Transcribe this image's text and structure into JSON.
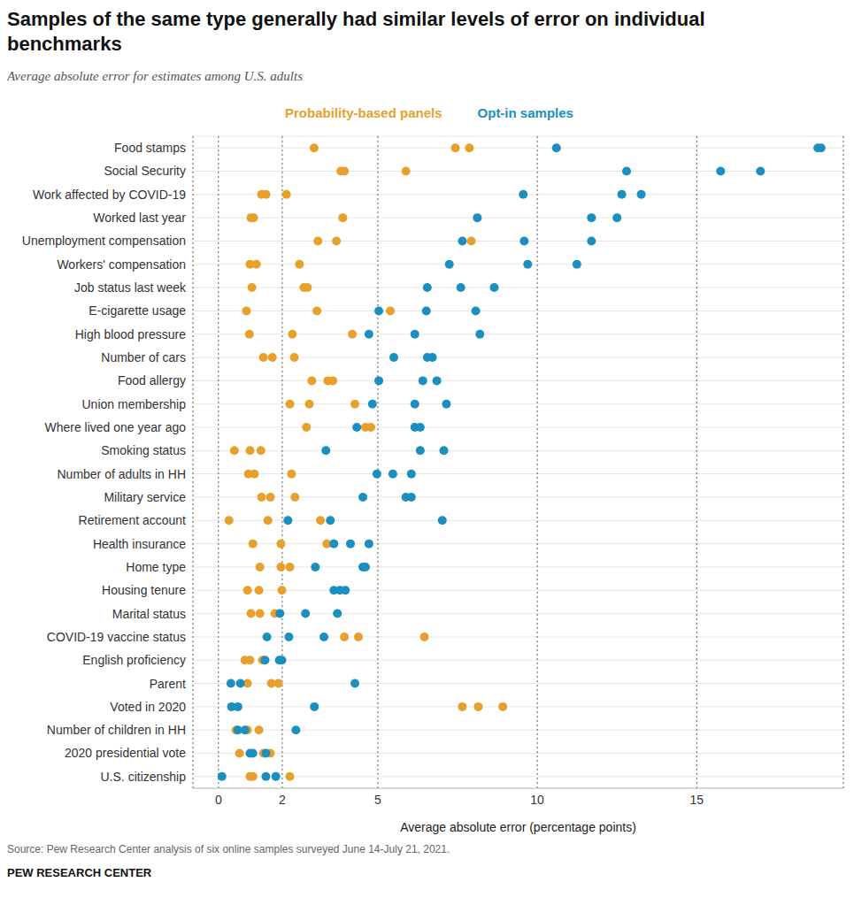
{
  "chart_data": {
    "type": "scatter",
    "title": "Samples of the same type generally had similar levels of error on individual benchmarks",
    "subtitle": "Average absolute error for estimates among U.S. adults",
    "x_label": "Average absolute error (percentage points)",
    "source": "Source: Pew Research Center analysis of six online samples surveyed June 14-July 21, 2021.",
    "credit": "PEW RESEARCH CENTER",
    "categories": [
      "Food stamps",
      "Social Security",
      "Work affected by COVID-19",
      "Worked last year",
      "Unemployment compensation",
      "Workers' compensation",
      "Job status last week",
      "E-cigarette usage",
      "High blood pressure",
      "Number of cars",
      "Food allergy",
      "Union membership",
      "Where lived one year ago",
      "Smoking status",
      "Number of adults in HH",
      "Military service",
      "Retirement account",
      "Health insurance",
      "Home type",
      "Housing tenure",
      "Marital status",
      "COVID-19 vaccine status",
      "English proficiency",
      "Parent",
      "Voted in 2020",
      "Number of children in HH",
      "2020 presidential vote",
      "U.S. citizenship"
    ],
    "series": [
      {
        "name": "Probability-based panels",
        "color": "#e8a02c",
        "values": [
          [
            3.0,
            7.43,
            7.87
          ],
          [
            3.84,
            3.95,
            5.88
          ],
          [
            1.35,
            1.49,
            2.13
          ],
          [
            1.02,
            1.1,
            3.9
          ],
          [
            3.12,
            3.7,
            7.93
          ],
          [
            0.99,
            1.19,
            2.54
          ],
          [
            1.05,
            2.68,
            2.79
          ],
          [
            0.88,
            3.09,
            5.39
          ],
          [
            0.97,
            2.32,
            4.2
          ],
          [
            1.41,
            1.69,
            2.38
          ],
          [
            2.93,
            3.43,
            3.59
          ],
          [
            2.24,
            2.85,
            4.28
          ],
          [
            2.76,
            4.61,
            4.78
          ],
          [
            0.5,
            0.99,
            1.33
          ],
          [
            0.94,
            1.13,
            2.29
          ],
          [
            1.35,
            1.63,
            2.4
          ],
          [
            0.33,
            1.55,
            3.2
          ],
          [
            1.08,
            1.96,
            3.4
          ],
          [
            1.3,
            1.96,
            2.24
          ],
          [
            0.91,
            1.27,
            1.99
          ],
          [
            1.02,
            1.3,
            1.77
          ],
          [
            3.95,
            4.39,
            6.46
          ],
          [
            0.83,
            0.99,
            1.38
          ],
          [
            0.91,
            1.66,
            1.88
          ],
          [
            7.65,
            8.15,
            8.92
          ],
          [
            0.55,
            0.91,
            1.27
          ],
          [
            0.66,
            1.41,
            1.63
          ],
          [
            0.99,
            1.08,
            2.24
          ]
        ]
      },
      {
        "name": "Opt-in samples",
        "color": "#1b8fbf",
        "values": [
          [
            10.6,
            18.8,
            18.9
          ],
          [
            12.8,
            15.75,
            17.0
          ],
          [
            9.56,
            12.65,
            13.26
          ],
          [
            8.12,
            11.7,
            12.5
          ],
          [
            7.65,
            9.59,
            11.7
          ],
          [
            7.24,
            9.7,
            11.24
          ],
          [
            6.55,
            7.6,
            8.65
          ],
          [
            5.03,
            6.52,
            8.07
          ],
          [
            4.72,
            6.16,
            8.2
          ],
          [
            5.5,
            6.55,
            6.71
          ],
          [
            5.03,
            6.41,
            6.85
          ],
          [
            4.83,
            6.16,
            7.15
          ],
          [
            4.34,
            6.16,
            6.33
          ],
          [
            3.37,
            6.33,
            7.07
          ],
          [
            4.97,
            5.47,
            6.05
          ],
          [
            4.53,
            5.88,
            6.05
          ],
          [
            2.18,
            3.51,
            7.02
          ],
          [
            3.62,
            4.14,
            4.72
          ],
          [
            3.04,
            4.53,
            4.61
          ],
          [
            3.62,
            3.81,
            3.98
          ],
          [
            1.93,
            2.73,
            3.73
          ],
          [
            1.52,
            2.21,
            3.31
          ],
          [
            1.46,
            1.91,
            1.99
          ],
          [
            0.39,
            0.69,
            4.28
          ],
          [
            0.41,
            0.61,
            3.01
          ],
          [
            0.61,
            0.83,
            2.43
          ],
          [
            0.99,
            1.08,
            1.49
          ],
          [
            0.11,
            1.49,
            1.8
          ]
        ]
      }
    ],
    "xlim": [
      -0.8,
      19.6
    ],
    "xticks": [
      0,
      2,
      5,
      10,
      15
    ],
    "grid": true,
    "legend": "top",
    "marker": "circle"
  }
}
